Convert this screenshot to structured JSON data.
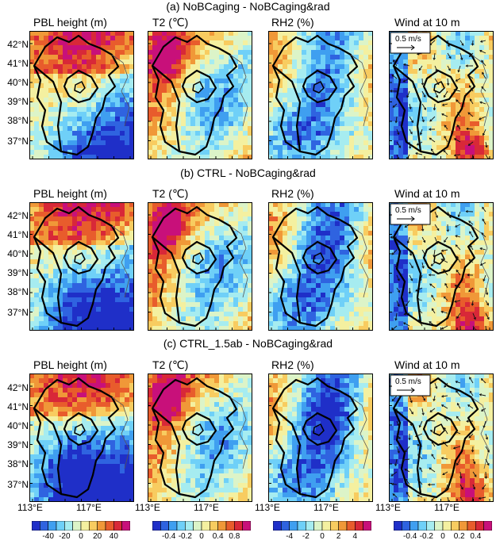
{
  "rows": [
    {
      "title": "(a) NoBCaging - NoBCaging&rad"
    },
    {
      "title": "(b) CTRL - NoBCaging&rad"
    },
    {
      "title": "(c) CTRL_1.5ab - NoBCaging&rad"
    }
  ],
  "panel_titles": [
    [
      "PBL height (m)",
      "T2 (℃)",
      "RH2 (%)",
      "Wind at 10 m"
    ],
    [
      "PBL height (m)",
      "T2 (℃)",
      "RH2 (%)",
      "Wind at 10 m"
    ],
    [
      "PBL height (m)",
      "T2 (℃)",
      "RH2 (%)",
      "Wind at 10 m"
    ]
  ],
  "lat_labels": [
    "42°N",
    "41°N",
    "40°N",
    "39°N",
    "38°N",
    "37°N"
  ],
  "lon_labels": [
    "113°E",
    "117°E"
  ],
  "wind_scale": "0.5 m/s",
  "colorbars": [
    {
      "labels": [
        "-40",
        "-20",
        "0",
        "20",
        "40"
      ]
    },
    {
      "labels": [
        "-0.4",
        "-0.2",
        "0",
        "0.4",
        "0.8"
      ]
    },
    {
      "labels": [
        "-4",
        "-2",
        "0",
        "2",
        "4"
      ]
    },
    {
      "labels": [
        "-0.4",
        "-0.2",
        "0",
        "0.2",
        "0.4"
      ]
    }
  ],
  "colors": {
    "palette": [
      "#1f2fc8",
      "#2f63e0",
      "#3f9ff0",
      "#6fd0f8",
      "#a6ecf0",
      "#dcf4c8",
      "#f4f0a0",
      "#f8cc60",
      "#f09838",
      "#e85c2c",
      "#d82838",
      "#c8107a"
    ]
  }
}
